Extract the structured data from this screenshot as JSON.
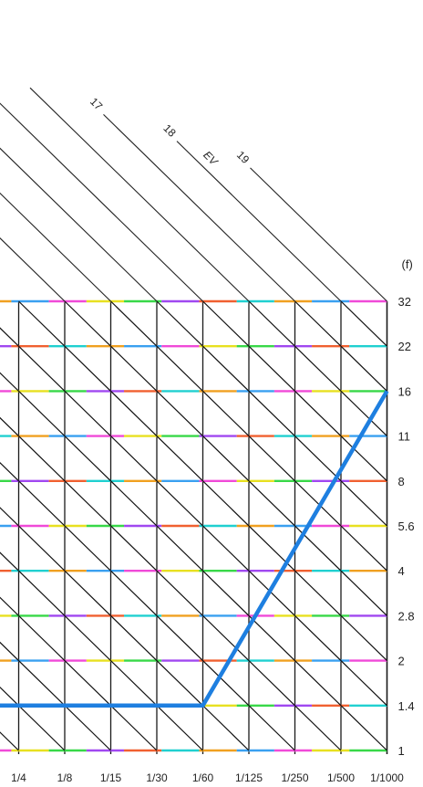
{
  "chart_data": {
    "type": "line",
    "title": "",
    "xlabel": "",
    "ylabel": "(f)",
    "ev_label": "EV",
    "x_ticks": [
      "1/4",
      "1/8",
      "1/15",
      "1/30",
      "1/60",
      "1/125",
      "1/250",
      "1/500",
      "1/1000"
    ],
    "y_ticks": [
      "1",
      "1.4",
      "2",
      "2.8",
      "4",
      "5.6",
      "8",
      "11",
      "16",
      "22",
      "32"
    ],
    "ev_lines": [
      "17",
      "18",
      "19"
    ],
    "grid": true,
    "series": [
      {
        "points": [
          {
            "shutter": "1/4",
            "aperture": "1.4"
          },
          {
            "shutter": "1/60",
            "aperture": "1.4"
          },
          {
            "shutter": "1/1000",
            "aperture": "16"
          }
        ],
        "color": "#1e7fe0"
      }
    ],
    "colors": {
      "line_color": "#1e7fe0",
      "diagonal": "#111111",
      "stripe_palette": [
        "#3aa0f0",
        "#f04ad8",
        "#e8e020",
        "#38d848",
        "#a048f0",
        "#f06030",
        "#20d0d0",
        "#f0a020"
      ]
    }
  }
}
